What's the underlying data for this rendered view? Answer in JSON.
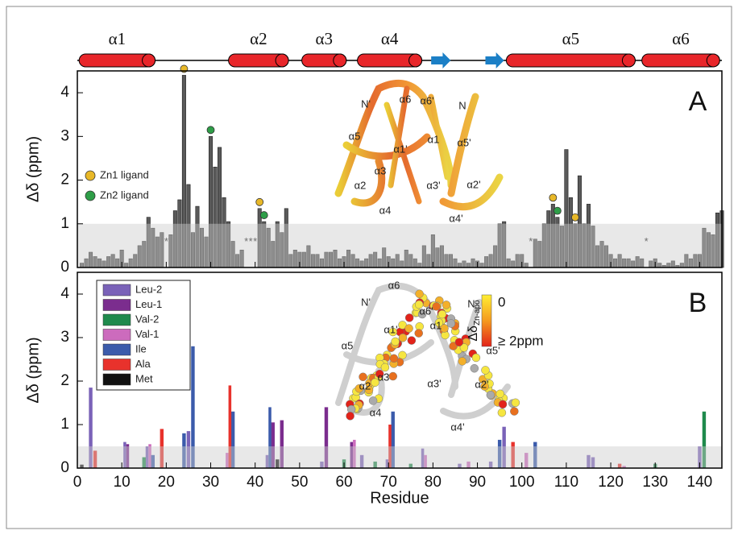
{
  "secondary_structure": [
    {
      "kind": "helix",
      "label": "α1",
      "start": 0.4,
      "end": 17.5
    },
    {
      "kind": "helix",
      "label": "α2",
      "start": 34,
      "end": 47.5
    },
    {
      "kind": "helix",
      "label": "α3",
      "start": 50.5,
      "end": 60.5
    },
    {
      "kind": "helix",
      "label": "α4",
      "start": 63,
      "end": 77.5
    },
    {
      "kind": "strand",
      "start": 79.6,
      "end": 84
    },
    {
      "kind": "strand",
      "start": 91.8,
      "end": 96
    },
    {
      "kind": "helix",
      "label": "α5",
      "start": 96.5,
      "end": 125.5
    },
    {
      "kind": "helix",
      "label": "α6",
      "start": 127,
      "end": 144.5
    }
  ],
  "chart_data": [
    {
      "type": "bar",
      "panel_label": "A",
      "y_label": "Δδ (ppm)",
      "color": "#5a5a5a",
      "x": [
        1,
        2,
        3,
        4,
        5,
        6,
        7,
        8,
        9,
        10,
        11,
        12,
        13,
        14,
        15,
        16,
        17,
        18,
        19,
        20,
        21,
        22,
        23,
        24,
        25,
        26,
        27,
        28,
        29,
        30,
        31,
        32,
        33,
        34,
        35,
        36,
        37,
        38,
        39,
        40,
        41,
        42,
        43,
        44,
        45,
        46,
        47,
        48,
        49,
        50,
        51,
        52,
        53,
        54,
        55,
        56,
        57,
        58,
        59,
        60,
        61,
        62,
        63,
        64,
        65,
        66,
        67,
        68,
        69,
        70,
        71,
        72,
        73,
        74,
        75,
        76,
        77,
        78,
        79,
        80,
        81,
        82,
        83,
        84,
        85,
        86,
        87,
        88,
        89,
        90,
        91,
        92,
        93,
        94,
        95,
        96,
        97,
        98,
        99,
        100,
        101,
        102,
        103,
        104,
        105,
        106,
        107,
        108,
        109,
        110,
        111,
        112,
        113,
        114,
        115,
        116,
        117,
        118,
        119,
        120,
        121,
        122,
        123,
        124,
        125,
        126,
        127,
        128,
        129,
        130,
        131,
        132,
        133,
        134,
        135,
        136,
        137,
        138,
        139,
        140,
        141,
        142,
        143,
        144,
        145
      ],
      "values": [
        0.1,
        0.2,
        0.35,
        0.25,
        0.2,
        0.15,
        0.25,
        0.3,
        0.2,
        0.4,
        0.1,
        0.2,
        0.3,
        0.5,
        0.6,
        1.15,
        0.9,
        0.7,
        0.8,
        null,
        0.75,
        1.3,
        1.55,
        4.4,
        1.9,
        0.8,
        1.4,
        0.9,
        0.7,
        3.0,
        2.3,
        2.75,
        1.6,
        1.05,
        0.6,
        0.3,
        0.4,
        null,
        null,
        null,
        1.35,
        1.05,
        0.9,
        0.6,
        1.05,
        0.8,
        1.35,
        0.3,
        0.4,
        0.35,
        0.35,
        0.5,
        0.3,
        0.3,
        0.2,
        0.35,
        0.35,
        0.4,
        0.2,
        0.25,
        0.4,
        0.3,
        0.2,
        0.15,
        0.2,
        0.3,
        0.35,
        0.2,
        0.45,
        0.25,
        0.2,
        0.3,
        0.15,
        0.4,
        0.3,
        0.2,
        0.1,
        0.5,
        0.3,
        0.75,
        0.45,
        0.5,
        0.3,
        0.3,
        0.2,
        0.1,
        0.15,
        0.1,
        0.2,
        0.15,
        0.1,
        0.25,
        0.3,
        0.5,
        1.0,
        1.05,
        0.2,
        0.15,
        0.3,
        0.3,
        0.1,
        null,
        0.65,
        0.6,
        1.0,
        1.3,
        1.45,
        1.15,
        0.95,
        2.7,
        1.6,
        1.0,
        2.1,
        1.0,
        1.45,
        0.95,
        0.5,
        0.6,
        0.5,
        0.3,
        0.2,
        0.3,
        0.2,
        0.2,
        0.15,
        0.25,
        0.2,
        null,
        0.15,
        0.2,
        0.1,
        0.05,
        0.1,
        0.15,
        0.05,
        0.1,
        0.3,
        0.2,
        0.3,
        0.3,
        0.9,
        0.8,
        0.75,
        1.25,
        1.3
      ],
      "unassigned_label": "*",
      "zn_ligands": [
        {
          "name": "Zn1 ligand",
          "color": "#e8b828",
          "x": [
            24,
            41,
            107,
            112
          ]
        },
        {
          "name": "Zn2 ligand",
          "color": "#2e9e48",
          "x": [
            30,
            42,
            108
          ]
        }
      ],
      "xlim": [
        0,
        145
      ],
      "xticks": [
        0,
        10,
        20,
        30,
        40,
        50,
        60,
        70,
        80,
        90,
        100,
        110,
        120,
        130,
        140
      ],
      "ylim": [
        0,
        4.5
      ],
      "yticks": [
        0,
        1,
        2,
        3,
        4
      ],
      "threshold": 1,
      "legend_position": "left",
      "structure_labels": [
        "N'",
        "α6",
        "α6'",
        "N",
        "α5",
        "α1'",
        "α1",
        "α5'",
        "α2",
        "α3",
        "α3'",
        "α2'",
        "α4",
        "α4'"
      ]
    },
    {
      "type": "bar",
      "panel_label": "B",
      "y_label": "Δδ (ppm)",
      "x_label": "Residue",
      "series": [
        {
          "name": "Leu-2",
          "color": "#7a62b8",
          "x": [
            3,
            11,
            16,
            25,
            43,
            55,
            64,
            70,
            78,
            86,
            93,
            96,
            115,
            116,
            140
          ],
          "values": [
            1.85,
            0.6,
            0.5,
            0.85,
            0.3,
            0.15,
            0.3,
            0.2,
            0.45,
            0.1,
            0.15,
            0.95,
            0.3,
            0.25,
            0.5
          ]
        },
        {
          "name": "Leu-1",
          "color": "#7b2d8e",
          "x": [
            11,
            44,
            46,
            56,
            62
          ],
          "values": [
            0.55,
            1.05,
            1.1,
            1.4,
            0.6
          ]
        },
        {
          "name": "Val-2",
          "color": "#1f8a4c",
          "x": [
            15,
            60,
            67,
            75,
            130,
            141
          ],
          "values": [
            0.25,
            0.2,
            0.15,
            0.1,
            0.1,
            1.3
          ]
        },
        {
          "name": "Val-1",
          "color": "#cc6bbd",
          "x": [
            16,
            34,
            62,
            78,
            88,
            101,
            123
          ],
          "values": [
            0.55,
            0.35,
            0.65,
            0.3,
            0.15,
            0.35,
            0.05
          ]
        },
        {
          "name": "Ile",
          "color": "#3b5bab",
          "x": [
            17,
            24,
            26,
            35,
            43,
            71,
            95,
            103
          ],
          "values": [
            0.3,
            0.8,
            2.8,
            1.3,
            1.4,
            1.3,
            0.65,
            0.6
          ]
        },
        {
          "name": "Ala",
          "color": "#e8322c",
          "x": [
            4,
            19,
            34,
            70,
            98,
            122
          ],
          "values": [
            0.4,
            0.9,
            1.9,
            1.0,
            0.6,
            0.1
          ]
        },
        {
          "name": "Met",
          "color": "#111111",
          "x": [
            1,
            45
          ],
          "values": [
            0.08,
            0.2
          ]
        }
      ],
      "xlim": [
        0,
        145
      ],
      "xticks": [
        0,
        10,
        20,
        30,
        40,
        50,
        60,
        70,
        80,
        90,
        100,
        110,
        120,
        130,
        140
      ],
      "ylim": [
        0,
        4.5
      ],
      "yticks": [
        0,
        1,
        2,
        3,
        4
      ],
      "threshold": 0.5,
      "legend_position": "upper left",
      "structure_labels": [
        "α6",
        "N'",
        "α6'",
        "N",
        "α1'",
        "α1",
        "α5",
        "α5'",
        "α2",
        "α3",
        "α3'",
        "α2'",
        "α4",
        "α4'"
      ],
      "colorbar": {
        "min_label": "0",
        "max_label": "≥ 2ppm",
        "title": "Δδ",
        "title_sub": "Zn-apo"
      }
    }
  ]
}
